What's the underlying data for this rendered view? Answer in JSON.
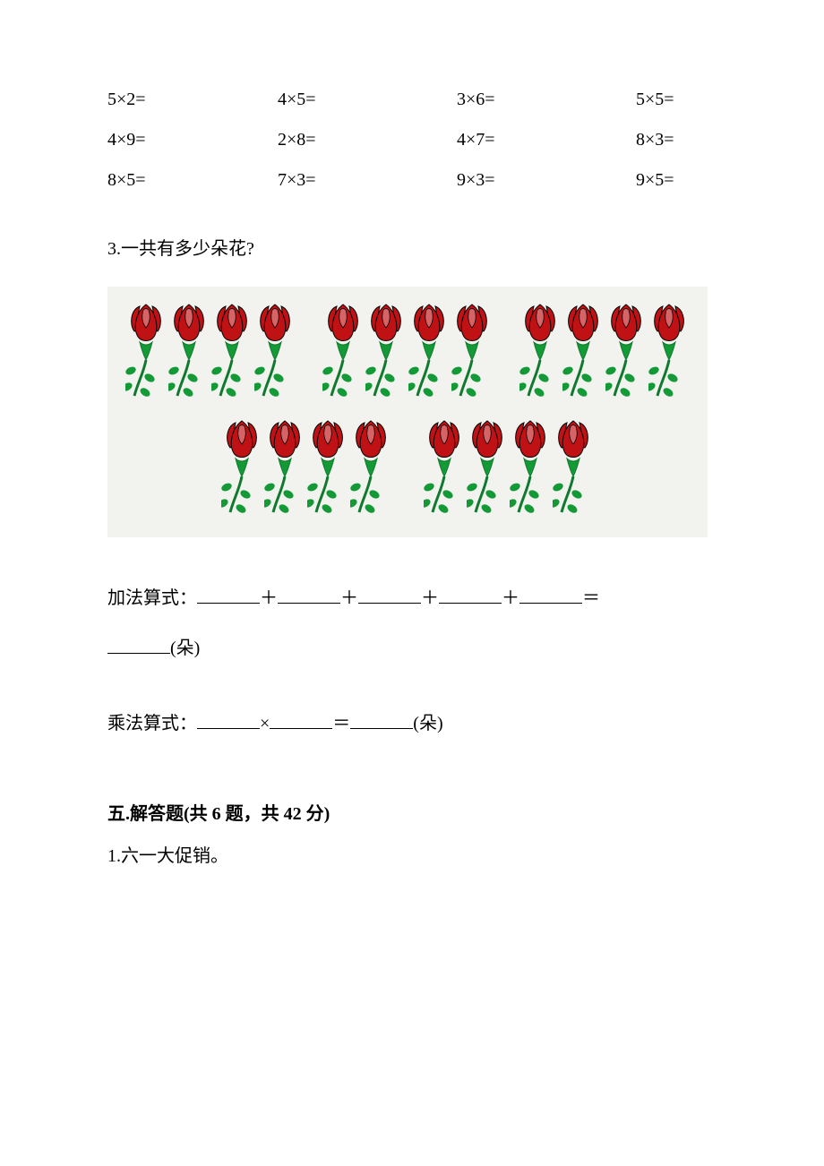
{
  "equations": {
    "rows": [
      [
        "5×2=",
        "4×5=",
        "3×6=",
        "5×5="
      ],
      [
        "4×9=",
        "2×8=",
        "4×7=",
        "8×3="
      ],
      [
        "8×5=",
        "7×3=",
        "9×3=",
        "9×5="
      ]
    ]
  },
  "q3": {
    "label": "3.一共有多少朵花?",
    "flowers": {
      "groups_row1": 3,
      "groups_row2": 2,
      "per_group": 4,
      "petal_color": "#c01214",
      "stem_color": "#0f7a2e",
      "leaf_color": "#139a36",
      "background": "#f2f2ef"
    },
    "addition_label": "加法算式：",
    "addition_ops": [
      "＋",
      "＋",
      "＋",
      "＋",
      "＝"
    ],
    "unit": "(朵)",
    "multiplication_label": "乘法算式：",
    "mult_ops": [
      "×",
      "＝"
    ]
  },
  "section5": {
    "title": "五.解答题(共 6 题，共 42 分)",
    "q1": "1.六一大促销。"
  }
}
